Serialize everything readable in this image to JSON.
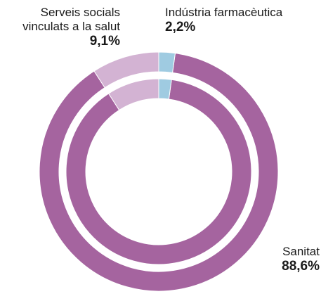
{
  "chart_data": {
    "type": "pie",
    "variant": "double-ring-donut",
    "categories": [
      "Sanitat",
      "Serveis socials\nvinculats a la salut",
      "Indústria farmacèutica"
    ],
    "values": [
      88.6,
      9.1,
      2.2
    ],
    "value_labels": [
      "88,6%",
      "9,1%",
      "2,2%"
    ],
    "colors": [
      "#a5649f",
      "#d3b3d3",
      "#9fcbe1"
    ],
    "start_angle_deg": 0,
    "direction": "counterclockwise",
    "rings": 2,
    "legend": "none",
    "grid": false
  }
}
